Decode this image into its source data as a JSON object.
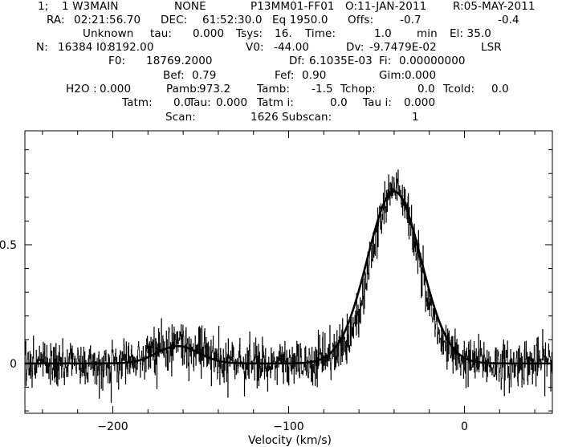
{
  "header": {
    "lines": [
      [
        "1;",
        "1 W3MAIN",
        "NONE",
        "P13MM01-FF01",
        "O:11-JAN-2011",
        "R:05-MAY-2011"
      ],
      [
        "RA:",
        "02:21:56.70",
        "DEC:",
        "61:52:30.0",
        "Eq 1950.0",
        "Offs:",
        "-0.7",
        "-0.4"
      ],
      [
        "Unknown",
        "tau:",
        "0.000",
        "Tsys:",
        "16.",
        "Time:",
        "1.0",
        "min",
        "El: 35.0"
      ],
      [
        "N:",
        "16384",
        "I0:",
        "8192.00",
        "V0:",
        "-44.00",
        "Dv:",
        "-9.7479E-02",
        "LSR"
      ],
      [
        "F0:",
        "18769.2000",
        "Df:",
        "6.1035E-03",
        "Fi:",
        "0.00000000"
      ],
      [
        "Bef:",
        "0.79",
        "Fef:",
        "0.90",
        "Gim:",
        "0.000"
      ],
      [
        "H2O :",
        "0.000",
        "Pamb:",
        "973.2",
        "Tamb:",
        "-1.5",
        "Tchop:",
        "0.0",
        "Tcold:",
        "0.0"
      ],
      [
        "Tatm:",
        "0.0",
        "Tau:",
        "0.000",
        "Tatm i:",
        "0.0",
        "Tau i:",
        "0.000"
      ],
      [
        "Scan:",
        "1626",
        "Subscan:",
        "1"
      ]
    ]
  },
  "chart_data": {
    "type": "line",
    "title": "",
    "xlabel": "Velocity (km/s)",
    "ylabel": "",
    "xlim": [
      -250,
      50
    ],
    "ylim": [
      -0.21,
      0.98
    ],
    "x_ticks": [
      -200,
      -100,
      0
    ],
    "x_tick_labels": [
      "−200",
      "−100",
      "0"
    ],
    "y_ticks": [
      0,
      0.5
    ],
    "y_tick_labels": [
      "0",
      "0.5"
    ],
    "grid": false,
    "legend": "none",
    "series": [
      {
        "style": "histogram-step",
        "x": [
          -250,
          -245,
          -240,
          -235,
          -230,
          -225,
          -220,
          -215,
          -210,
          -205,
          -200,
          -195,
          -190,
          -185,
          -180,
          -175,
          -170,
          -165,
          -160,
          -155,
          -150,
          -145,
          -140,
          -135,
          -130,
          -125,
          -120,
          -115,
          -110,
          -105,
          -100,
          -95,
          -90,
          -85,
          -80,
          -75,
          -70,
          -65,
          -60,
          -55,
          -50,
          -45,
          -40,
          -35,
          -30,
          -25,
          -20,
          -15,
          -10,
          -5,
          0,
          5,
          10,
          15,
          20,
          25,
          30,
          35,
          40,
          45,
          50
        ],
        "y": [
          0.01,
          -0.02,
          0.03,
          0.0,
          -0.03,
          0.02,
          0.01,
          -0.01,
          0.02,
          -0.02,
          0.0,
          0.01,
          0.02,
          0.04,
          0.05,
          0.06,
          0.07,
          0.09,
          0.08,
          0.06,
          0.05,
          0.03,
          0.01,
          0.0,
          0.02,
          -0.03,
          0.01,
          -0.02,
          0.0,
          0.03,
          -0.01,
          0.01,
          -0.02,
          0.0,
          0.02,
          -0.01,
          0.03,
          0.06,
          0.16,
          0.33,
          0.52,
          0.68,
          0.76,
          0.7,
          0.55,
          0.36,
          0.2,
          0.1,
          0.04,
          0.02,
          0.0,
          -0.01,
          0.03,
          -0.02,
          0.01,
          -0.03,
          0.0,
          0.02,
          -0.01,
          0.03,
          0.0
        ],
        "noise_rms": 0.05
      },
      {
        "style": "fit",
        "components": [
          {
            "amplitude": 0.073,
            "center": -163,
            "fwhm": 28
          },
          {
            "amplitude": 0.725,
            "center": -40,
            "fwhm": 36
          }
        ]
      }
    ]
  }
}
